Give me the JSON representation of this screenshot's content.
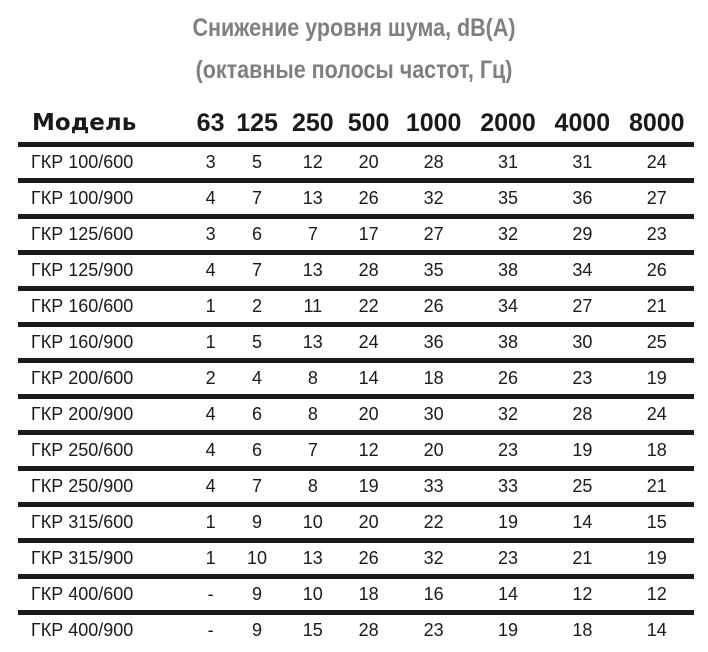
{
  "title": {
    "line1": "Снижение уровня шума, dB(A)",
    "line2": "(октавные полосы частот, Гц)"
  },
  "table": {
    "headers": [
      "Модель",
      "63",
      "125",
      "250",
      "500",
      "1000",
      "2000",
      "4000",
      "8000"
    ],
    "rows": [
      [
        "ГКР 100/600",
        "3",
        "5",
        "12",
        "20",
        "28",
        "31",
        "31",
        "24"
      ],
      [
        "ГКР 100/900",
        "4",
        "7",
        "13",
        "26",
        "32",
        "35",
        "36",
        "27"
      ],
      [
        "ГКР 125/600",
        "3",
        "6",
        "7",
        "17",
        "27",
        "32",
        "29",
        "23"
      ],
      [
        "ГКР 125/900",
        "4",
        "7",
        "13",
        "28",
        "35",
        "38",
        "34",
        "26"
      ],
      [
        "ГКР 160/600",
        "1",
        "2",
        "11",
        "22",
        "26",
        "34",
        "27",
        "21"
      ],
      [
        "ГКР 160/900",
        "1",
        "5",
        "13",
        "24",
        "36",
        "38",
        "30",
        "25"
      ],
      [
        "ГКР 200/600",
        "2",
        "4",
        "8",
        "14",
        "18",
        "26",
        "23",
        "19"
      ],
      [
        "ГКР 200/900",
        "4",
        "6",
        "8",
        "20",
        "30",
        "32",
        "28",
        "24"
      ],
      [
        "ГКР 250/600",
        "4",
        "6",
        "7",
        "12",
        "20",
        "23",
        "19",
        "18"
      ],
      [
        "ГКР 250/900",
        "4",
        "7",
        "8",
        "19",
        "33",
        "33",
        "25",
        "21"
      ],
      [
        "ГКР 315/600",
        "1",
        "9",
        "10",
        "20",
        "22",
        "19",
        "14",
        "15"
      ],
      [
        "ГКР 315/900",
        "1",
        "10",
        "13",
        "26",
        "32",
        "23",
        "21",
        "19"
      ],
      [
        "ГКР 400/600",
        "-",
        "9",
        "10",
        "18",
        "16",
        "14",
        "12",
        "12"
      ],
      [
        "ГКР 400/900",
        "-",
        "9",
        "15",
        "28",
        "23",
        "19",
        "18",
        "14"
      ]
    ]
  }
}
